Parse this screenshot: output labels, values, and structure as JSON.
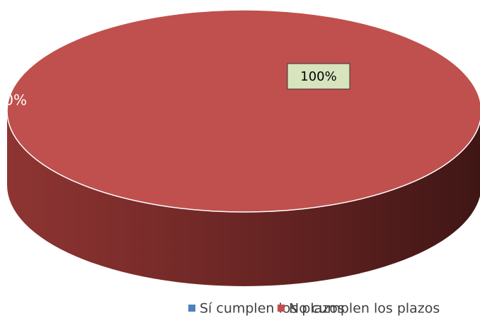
{
  "chart_data": {
    "type": "pie3d",
    "categories": [
      "Sí cumplen los plazos",
      "No cumplen los plazos"
    ],
    "values": [
      0,
      100
    ],
    "value_labels": [
      "0%",
      "100%"
    ],
    "colors": [
      "#4f81bd",
      "#c0504d"
    ],
    "legend": "bottom"
  }
}
